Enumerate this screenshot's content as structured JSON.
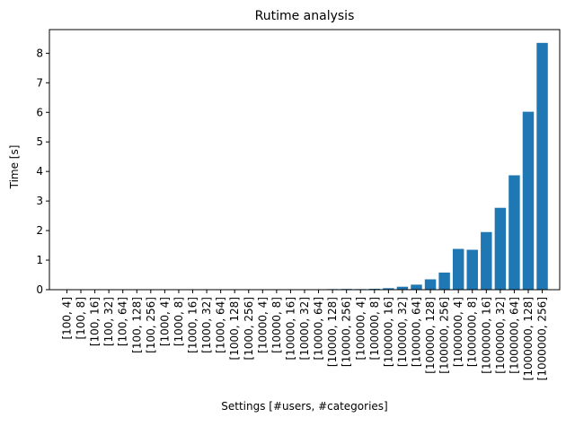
{
  "chart_data": {
    "type": "bar",
    "title": "Rutime analysis",
    "xlabel": "Settings [#users, #categories]",
    "ylabel": "Time [s]",
    "ylim": [
      0,
      8.8
    ],
    "yticks": [
      0,
      1,
      2,
      3,
      4,
      5,
      6,
      7,
      8
    ],
    "grid": false,
    "bar_color": "#1f77b4",
    "categories": [
      "[100, 4]",
      "[100, 8]",
      "[100, 16]",
      "[100, 32]",
      "[100, 64]",
      "[100, 128]",
      "[100, 256]",
      "[1000, 4]",
      "[1000, 8]",
      "[1000, 16]",
      "[1000, 32]",
      "[1000, 64]",
      "[1000, 128]",
      "[1000, 256]",
      "[10000, 4]",
      "[10000, 8]",
      "[10000, 16]",
      "[10000, 32]",
      "[10000, 64]",
      "[10000, 128]",
      "[10000, 256]",
      "[100000, 4]",
      "[100000, 8]",
      "[100000, 16]",
      "[100000, 32]",
      "[100000, 64]",
      "[100000, 128]",
      "[100000, 256]",
      "[1000000, 4]",
      "[1000000, 8]",
      "[1000000, 16]",
      "[1000000, 32]",
      "[1000000, 64]",
      "[1000000, 128]",
      "[1000000, 256]"
    ],
    "values": [
      0.001,
      0.001,
      0.001,
      0.001,
      0.002,
      0.003,
      0.004,
      0.002,
      0.003,
      0.004,
      0.005,
      0.007,
      0.009,
      0.012,
      0.004,
      0.006,
      0.008,
      0.01,
      0.013,
      0.02,
      0.025,
      0.02,
      0.03,
      0.05,
      0.1,
      0.17,
      0.35,
      0.58,
      1.38,
      1.35,
      1.95,
      2.77,
      3.87,
      6.02,
      8.35
    ]
  }
}
